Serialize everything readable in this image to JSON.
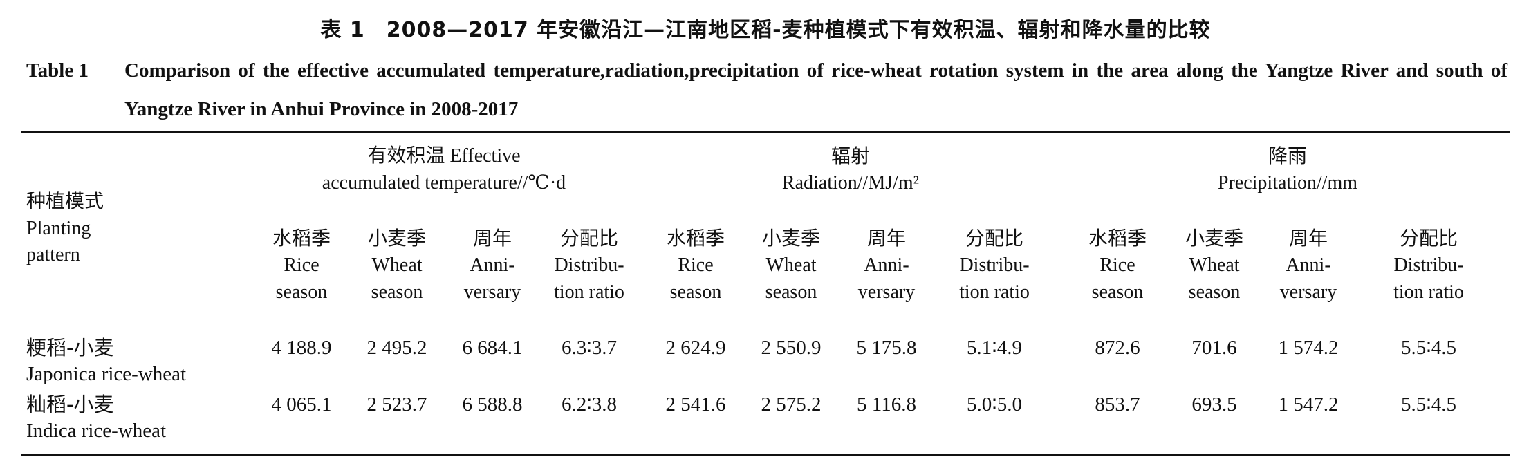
{
  "caption": {
    "cn": "表 1　2008—2017 年安徽沿江—江南地区稻-麦种植模式下有效积温、辐射和降水量的比较",
    "label": "Table 1",
    "en": "Comparison of the effective accumulated temperature,radiation,precipitation of rice-wheat rotation system in the area along the Yangtze River and south of Yangtze River in Anhui Province in 2008-2017"
  },
  "header": {
    "pattern": {
      "cn": "种植模式",
      "en1": "Planting",
      "en2": "pattern"
    },
    "groups": [
      {
        "cn": "有效积温 Effective",
        "en": "accumulated temperature//℃·d"
      },
      {
        "cn": "辐射",
        "en": "Radiation//MJ/m²"
      },
      {
        "cn": "降雨",
        "en": "Precipitation//mm"
      }
    ],
    "subcols": [
      {
        "cn": "水稻季",
        "en1": "Rice",
        "en2": "season"
      },
      {
        "cn": "小麦季",
        "en1": "Wheat",
        "en2": "season"
      },
      {
        "cn": "周年",
        "en1": "Anni-",
        "en2": "versary"
      },
      {
        "cn": "分配比",
        "en1": "Distribu-",
        "en2": "tion ratio"
      }
    ]
  },
  "rows": [
    {
      "cn": "粳稻-小麦",
      "en": "Japonica rice-wheat",
      "temp": [
        "4 188.9",
        "2 495.2",
        "6 684.1",
        "6.3∶3.7"
      ],
      "rad": [
        "2 624.9",
        "2 550.9",
        "5 175.8",
        "5.1∶4.9"
      ],
      "prec": [
        "872.6",
        "701.6",
        "1 574.2",
        "5.5∶4.5"
      ]
    },
    {
      "cn": "籼稻-小麦",
      "en": "Indica rice-wheat",
      "temp": [
        "4 065.1",
        "2 523.7",
        "6 588.8",
        "6.2∶3.8"
      ],
      "rad": [
        "2 541.6",
        "2 575.2",
        "5 116.8",
        "5.0∶5.0"
      ],
      "prec": [
        "853.7",
        "693.5",
        "1 547.2",
        "5.5∶4.5"
      ]
    }
  ]
}
